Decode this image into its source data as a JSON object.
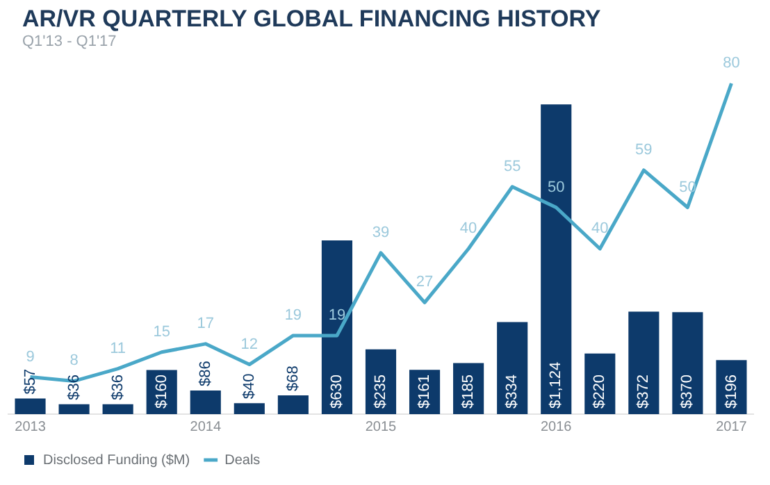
{
  "chart_data": {
    "type": "bar",
    "title": "AR/VR QUARTERLY GLOBAL FINANCING HISTORY",
    "subtitle": "Q1'13 - Q1'17",
    "categories": [
      "2013",
      null,
      null,
      null,
      "2014",
      null,
      null,
      null,
      "2015",
      null,
      null,
      null,
      "2016",
      null,
      null,
      null,
      "2017"
    ],
    "series": [
      {
        "name": "Disclosed Funding ($M)",
        "color": "#0d3a6b",
        "values": [
          57,
          36,
          36,
          160,
          86,
          40,
          68,
          630,
          235,
          161,
          185,
          334,
          1124,
          220,
          372,
          370,
          196
        ],
        "value_labels": [
          "$57",
          "$36",
          "$36",
          "$160",
          "$86",
          "$40",
          "$68",
          "$630",
          "$235",
          "$161",
          "$185",
          "$334",
          "$1,124",
          "$220",
          "$372",
          "$370",
          "$196"
        ]
      },
      {
        "name": "Deals",
        "type": "line",
        "axis": "y2",
        "color": "#4aa8c8",
        "values": [
          9,
          8,
          11,
          15,
          17,
          12,
          19,
          19,
          39,
          27,
          40,
          55,
          50,
          40,
          59,
          50,
          80
        ],
        "value_labels": [
          "9",
          "8",
          "11",
          "15",
          "17",
          "12",
          "19",
          "19",
          "39",
          "27",
          "40",
          "55",
          "50",
          "40",
          "59",
          "50",
          "80"
        ]
      }
    ],
    "legend": "bottom left",
    "grid": false,
    "marker": "none"
  }
}
